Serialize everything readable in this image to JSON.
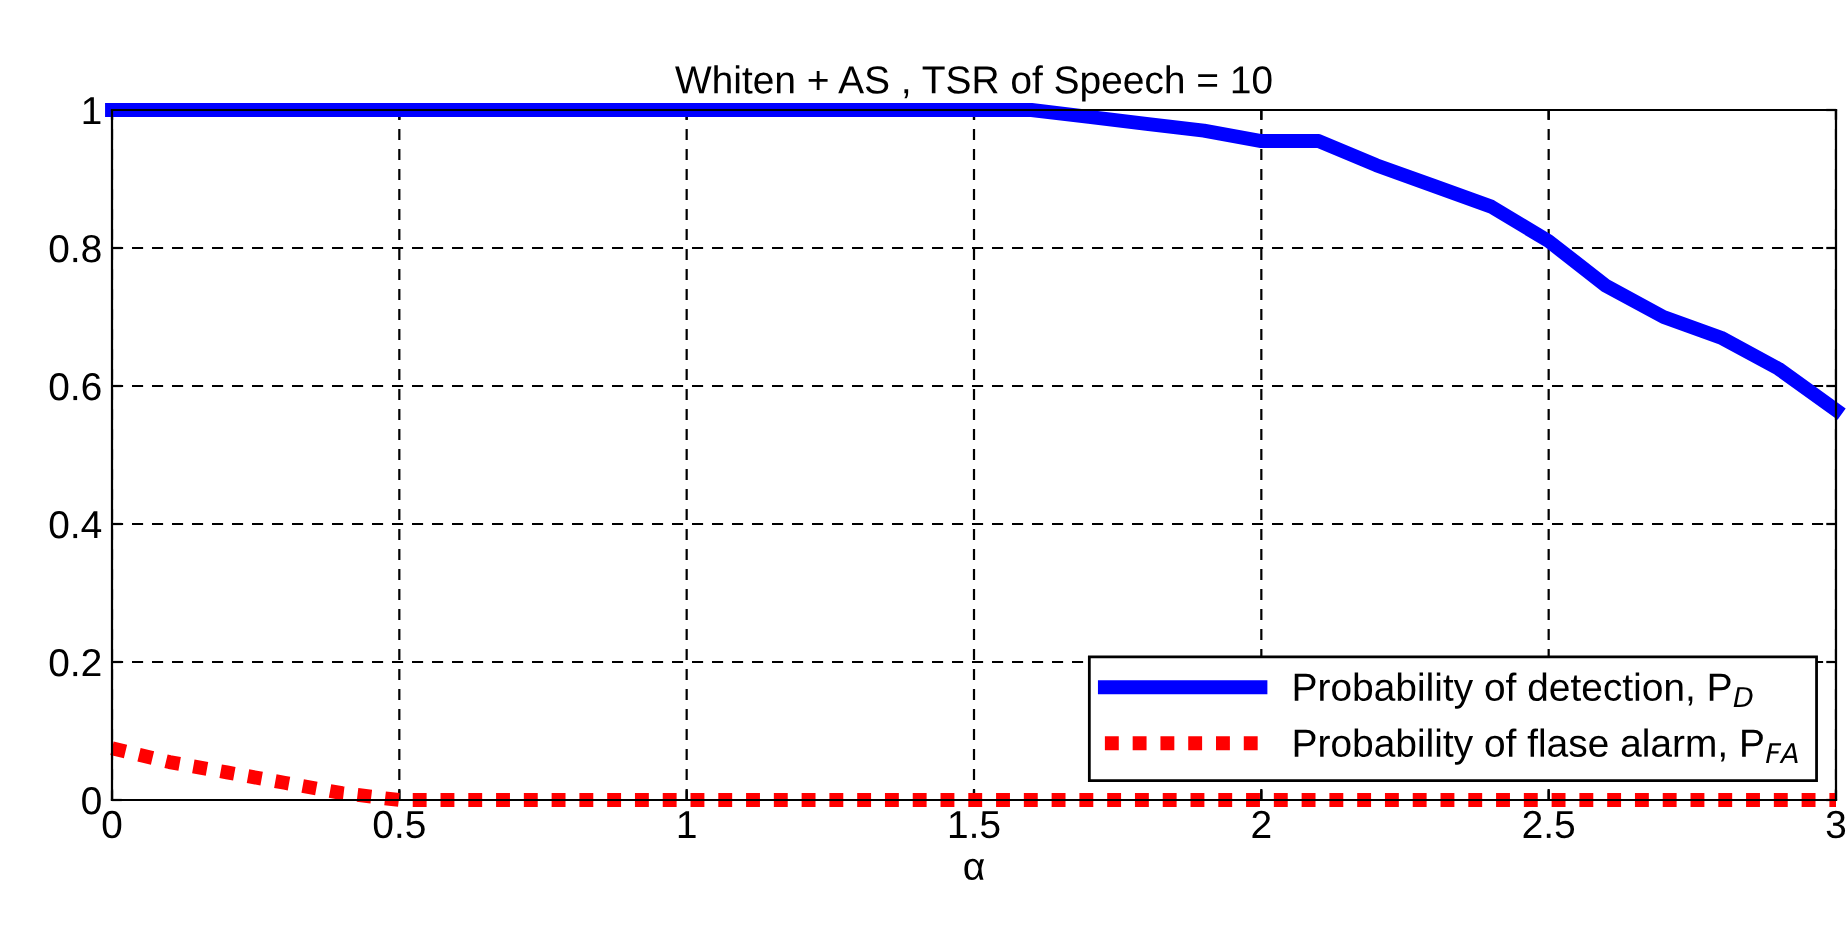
{
  "chart_data": {
    "type": "line",
    "title": "Whiten + AS , TSR of Speech = 10",
    "xlabel": "α",
    "series": [
      {
        "name": "Probability of detection, P$_{D}$",
        "color": "#0000ff",
        "line_style": "solid",
        "x": [
          0,
          0.5,
          1,
          1.5,
          1.6,
          1.7,
          1.8,
          1.9,
          2.0,
          2.1,
          2.2,
          2.3,
          2.4,
          2.5,
          2.6,
          2.7,
          2.8,
          2.9,
          3.0
        ],
        "values": [
          1,
          1,
          1,
          1,
          1,
          0.99,
          0.98,
          0.97,
          0.955,
          0.955,
          0.92,
          0.89,
          0.86,
          0.81,
          0.745,
          0.7,
          0.67,
          0.625,
          0.565
        ]
      },
      {
        "name": "Probability of flase alarm, P$_{FA}$",
        "color": "#ff0000",
        "line_style": "dotted",
        "x": [
          0,
          0.1,
          0.2,
          0.3,
          0.4,
          0.5,
          1,
          1.5,
          2,
          2.5,
          3
        ],
        "values": [
          0.075,
          0.055,
          0.04,
          0.025,
          0.01,
          0,
          0,
          0,
          0,
          0,
          0
        ]
      }
    ],
    "xlim": [
      0,
      3
    ],
    "xticks": [
      0,
      0.5,
      1,
      1.5,
      2,
      2.5,
      3
    ],
    "ylim": [
      0,
      1
    ],
    "yticks": [
      0,
      0.2,
      0.4,
      0.6,
      0.8,
      1
    ],
    "grid": true,
    "legend": "lower right"
  }
}
